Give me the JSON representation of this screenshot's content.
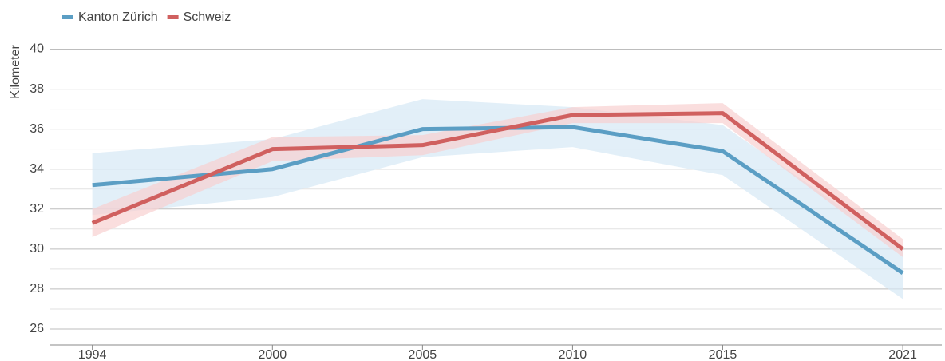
{
  "chart_data": {
    "type": "line",
    "y_label": "Kilometer",
    "x": [
      1994,
      2000,
      2005,
      2010,
      2015,
      2021
    ],
    "series": [
      {
        "name": "Kanton Zürich",
        "color": "#5b9ec4",
        "band_color": "#d6e8f5",
        "values": [
          33.2,
          34.0,
          36.0,
          36.1,
          34.9,
          28.8
        ],
        "lower": [
          31.7,
          32.6,
          34.6,
          35.1,
          33.7,
          27.5
        ],
        "upper": [
          34.8,
          35.5,
          37.5,
          37.1,
          36.2,
          30.0
        ]
      },
      {
        "name": "Schweiz",
        "color": "#d0605f",
        "band_color": "#f8d0d0",
        "values": [
          31.3,
          35.0,
          35.2,
          36.7,
          36.8,
          30.0
        ],
        "lower": [
          30.6,
          34.4,
          34.7,
          36.3,
          36.3,
          29.6
        ],
        "upper": [
          32.0,
          35.6,
          35.7,
          37.1,
          37.3,
          30.5
        ]
      }
    ],
    "xlim": [
      1992.6,
      2022.3
    ],
    "ylim": [
      25.2,
      40.5
    ],
    "yticks": [
      26,
      28,
      30,
      32,
      34,
      36,
      38,
      40
    ],
    "minor_yticks": [
      27,
      29,
      31,
      33,
      35,
      37,
      39
    ],
    "grid": true,
    "legend": "top-left"
  }
}
